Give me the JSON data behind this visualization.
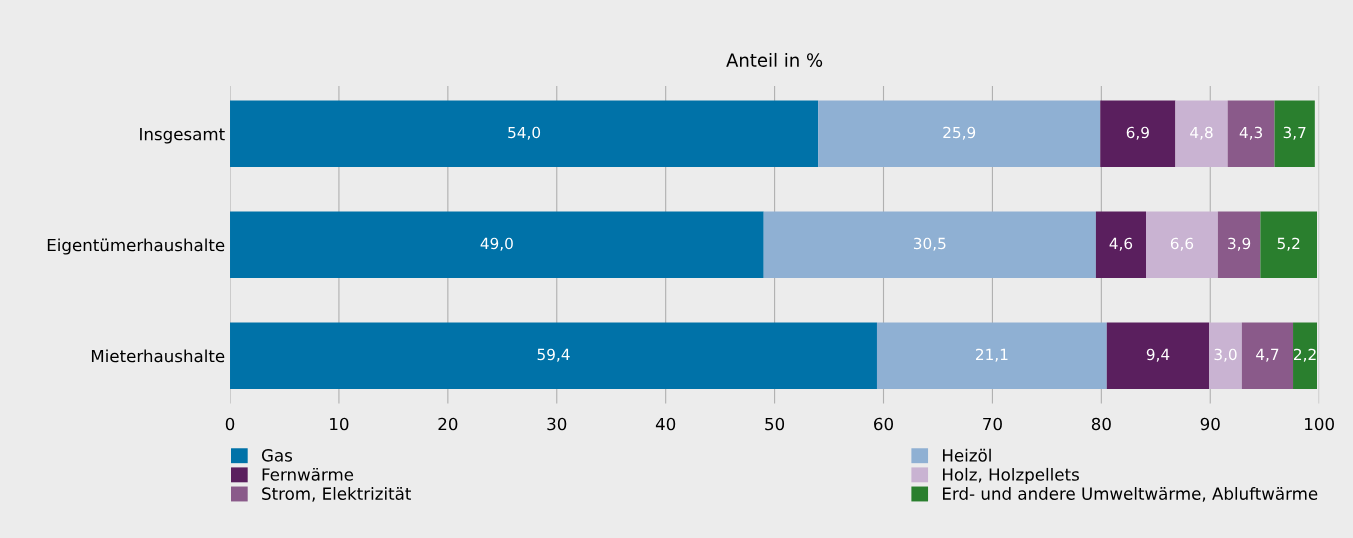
{
  "chart_data": {
    "type": "bar",
    "orientation": "horizontal",
    "stacked": true,
    "xlabel": "Anteil in %",
    "categories": [
      "Insgesamt",
      "Eigentümerhaushalte",
      "Mieterhaushalte"
    ],
    "series": [
      {
        "name": "Gas",
        "color": "#0072a8",
        "values": [
          54.0,
          49.0,
          59.4
        ],
        "value_labels": [
          "54,0",
          "49,0",
          "59,4"
        ]
      },
      {
        "name": "Heizöl",
        "color": "#8fb0d3",
        "values": [
          25.9,
          30.5,
          21.1
        ],
        "value_labels": [
          "25,9",
          "30,5",
          "21,1"
        ]
      },
      {
        "name": "Fernwärme",
        "color": "#5a1f5e",
        "values": [
          6.9,
          4.6,
          9.4
        ],
        "value_labels": [
          "6,9",
          "4,6",
          "9,4"
        ]
      },
      {
        "name": "Holz, Holzpellets",
        "color": "#c9b3d2",
        "values": [
          4.8,
          6.6,
          3.0
        ],
        "value_labels": [
          "4,8",
          "6,6",
          "3,0"
        ]
      },
      {
        "name": "Strom, Elektrizität",
        "color": "#8a5a8a",
        "values": [
          4.3,
          3.9,
          4.7
        ],
        "value_labels": [
          "4,3",
          "3,9",
          "4,7"
        ]
      },
      {
        "name": "Erd- und andere Umweltwärme, Abluftwärme",
        "color": "#2a7f2e",
        "values": [
          3.7,
          5.2,
          2.2
        ],
        "value_labels": [
          "3,7",
          "5,2",
          "2,2"
        ]
      }
    ],
    "xlim": [
      0,
      100
    ],
    "xticks": [
      0,
      10,
      20,
      30,
      40,
      50,
      60,
      70,
      80,
      90,
      100
    ],
    "grid": "x",
    "legend": "bottom"
  }
}
